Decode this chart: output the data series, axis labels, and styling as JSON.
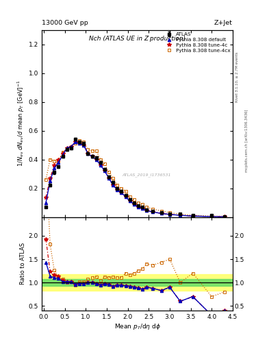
{
  "title_top": "13000 GeV pp",
  "title_top_right": "Z+Jet",
  "plot_title": "Nch (ATLAS UE in Z production)",
  "right_label_top": "Rivet 3.1.10, ≥ 2.7M events",
  "right_label_bottom": "mcplots.cern.ch [arXiv:1306.3436]",
  "watermark": "ATLAS_2019_I1736531",
  "atlas_data_x": [
    0.05,
    0.15,
    0.25,
    0.35,
    0.45,
    0.55,
    0.65,
    0.75,
    0.85,
    0.95,
    1.05,
    1.15,
    1.25,
    1.35,
    1.45,
    1.55,
    1.65,
    1.75,
    1.85,
    1.95,
    2.05,
    2.15,
    2.25,
    2.35,
    2.45,
    2.6,
    2.8,
    3.0,
    3.25,
    3.55,
    4.0,
    4.3
  ],
  "atlas_data_y": [
    0.07,
    0.22,
    0.31,
    0.35,
    0.42,
    0.47,
    0.48,
    0.54,
    0.52,
    0.51,
    0.44,
    0.42,
    0.41,
    0.38,
    0.33,
    0.28,
    0.24,
    0.2,
    0.18,
    0.15,
    0.12,
    0.1,
    0.08,
    0.07,
    0.05,
    0.04,
    0.03,
    0.02,
    0.02,
    0.01,
    0.01,
    0.005
  ],
  "atlas_data_yerr": [
    0.006,
    0.01,
    0.01,
    0.01,
    0.01,
    0.01,
    0.01,
    0.01,
    0.01,
    0.01,
    0.01,
    0.01,
    0.01,
    0.01,
    0.01,
    0.01,
    0.01,
    0.008,
    0.007,
    0.006,
    0.005,
    0.004,
    0.003,
    0.003,
    0.002,
    0.002,
    0.001,
    0.001,
    0.001,
    0.001,
    0.001,
    0.001
  ],
  "pythia_default_x": [
    0.05,
    0.15,
    0.25,
    0.35,
    0.45,
    0.55,
    0.65,
    0.75,
    0.85,
    0.95,
    1.05,
    1.15,
    1.25,
    1.35,
    1.45,
    1.55,
    1.65,
    1.75,
    1.85,
    1.95,
    2.05,
    2.15,
    2.25,
    2.35,
    2.45,
    2.6,
    2.8,
    3.0,
    3.25,
    3.55,
    4.0,
    4.3
  ],
  "pythia_default_y": [
    0.1,
    0.25,
    0.34,
    0.38,
    0.43,
    0.48,
    0.49,
    0.52,
    0.51,
    0.5,
    0.44,
    0.42,
    0.4,
    0.36,
    0.32,
    0.27,
    0.22,
    0.19,
    0.17,
    0.14,
    0.11,
    0.09,
    0.07,
    0.06,
    0.045,
    0.035,
    0.025,
    0.018,
    0.012,
    0.007,
    0.003,
    0.002
  ],
  "pythia_4c_x": [
    0.05,
    0.15,
    0.25,
    0.35,
    0.45,
    0.55,
    0.65,
    0.75,
    0.85,
    0.95,
    1.05,
    1.15,
    1.25,
    1.35,
    1.45,
    1.55,
    1.65,
    1.75,
    1.85,
    1.95,
    2.05,
    2.15,
    2.25,
    2.35,
    2.45,
    2.6,
    2.8,
    3.0,
    3.25,
    3.55,
    4.0,
    4.3
  ],
  "pythia_4c_y": [
    0.135,
    0.27,
    0.36,
    0.4,
    0.44,
    0.48,
    0.49,
    0.52,
    0.51,
    0.5,
    0.44,
    0.42,
    0.4,
    0.36,
    0.32,
    0.27,
    0.22,
    0.19,
    0.17,
    0.14,
    0.11,
    0.09,
    0.07,
    0.06,
    0.045,
    0.035,
    0.025,
    0.018,
    0.012,
    0.007,
    0.003,
    0.002
  ],
  "pythia_4cx_x": [
    0.05,
    0.15,
    0.25,
    0.35,
    0.45,
    0.55,
    0.65,
    0.75,
    0.85,
    0.95,
    1.05,
    1.15,
    1.25,
    1.35,
    1.45,
    1.55,
    1.65,
    1.75,
    1.85,
    1.95,
    2.05,
    2.15,
    2.25,
    2.35,
    2.45,
    2.6,
    2.8,
    3.0,
    3.25,
    3.55,
    4.0,
    4.3
  ],
  "pythia_4cx_y": [
    0.26,
    0.4,
    0.39,
    0.39,
    0.45,
    0.47,
    0.49,
    0.51,
    0.53,
    0.52,
    0.47,
    0.46,
    0.46,
    0.4,
    0.37,
    0.31,
    0.27,
    0.22,
    0.2,
    0.18,
    0.14,
    0.12,
    0.1,
    0.09,
    0.07,
    0.055,
    0.043,
    0.03,
    0.02,
    0.012,
    0.007,
    0.005
  ],
  "pythia_default_color": "#0000bb",
  "pythia_4c_color": "#cc0000",
  "pythia_4cx_color": "#cc6600",
  "ratio_x": [
    0.05,
    0.15,
    0.25,
    0.35,
    0.45,
    0.55,
    0.65,
    0.75,
    0.85,
    0.95,
    1.05,
    1.15,
    1.25,
    1.35,
    1.45,
    1.55,
    1.65,
    1.75,
    1.85,
    1.95,
    2.05,
    2.15,
    2.25,
    2.35,
    2.45,
    2.6,
    2.8,
    3.0,
    3.25,
    3.55,
    4.0,
    4.3
  ],
  "ratio_default": [
    1.43,
    1.14,
    1.1,
    1.09,
    1.02,
    1.02,
    1.02,
    0.96,
    0.98,
    0.98,
    1.0,
    1.0,
    0.98,
    0.95,
    0.97,
    0.96,
    0.92,
    0.95,
    0.94,
    0.93,
    0.92,
    0.9,
    0.88,
    0.86,
    0.9,
    0.875,
    0.83,
    0.9,
    0.6,
    0.7,
    0.3,
    0.4
  ],
  "ratio_4c": [
    1.93,
    1.23,
    1.16,
    1.14,
    1.05,
    1.02,
    1.02,
    0.96,
    0.98,
    0.98,
    1.0,
    1.0,
    0.98,
    0.95,
    0.97,
    0.96,
    0.92,
    0.95,
    0.94,
    0.93,
    0.92,
    0.9,
    0.88,
    0.86,
    0.9,
    0.875,
    0.83,
    0.9,
    0.6,
    0.7,
    0.3,
    0.4
  ],
  "ratio_4cx": [
    3.71,
    1.82,
    1.26,
    1.11,
    1.07,
    1.0,
    1.02,
    0.94,
    1.02,
    1.02,
    1.07,
    1.1,
    1.12,
    1.05,
    1.12,
    1.11,
    1.12,
    1.1,
    1.11,
    1.2,
    1.17,
    1.2,
    1.25,
    1.29,
    1.4,
    1.375,
    1.43,
    1.5,
    1.0,
    1.2,
    0.7,
    0.8
  ],
  "green_band": [
    0.93,
    1.07
  ],
  "yellow_band": [
    0.82,
    1.18
  ],
  "ylim_main": [
    0.0,
    1.3
  ],
  "ylim_ratio": [
    0.4,
    2.4
  ],
  "xlim": [
    -0.05,
    4.5
  ],
  "yticks_main": [
    0.2,
    0.4,
    0.6,
    0.8,
    1.0,
    1.2
  ],
  "yticks_ratio": [
    0.5,
    1.0,
    1.5,
    2.0
  ],
  "xticks": [
    0.0,
    0.5,
    1.0,
    1.5,
    2.0,
    2.5,
    3.0,
    3.5,
    4.0,
    4.5
  ]
}
